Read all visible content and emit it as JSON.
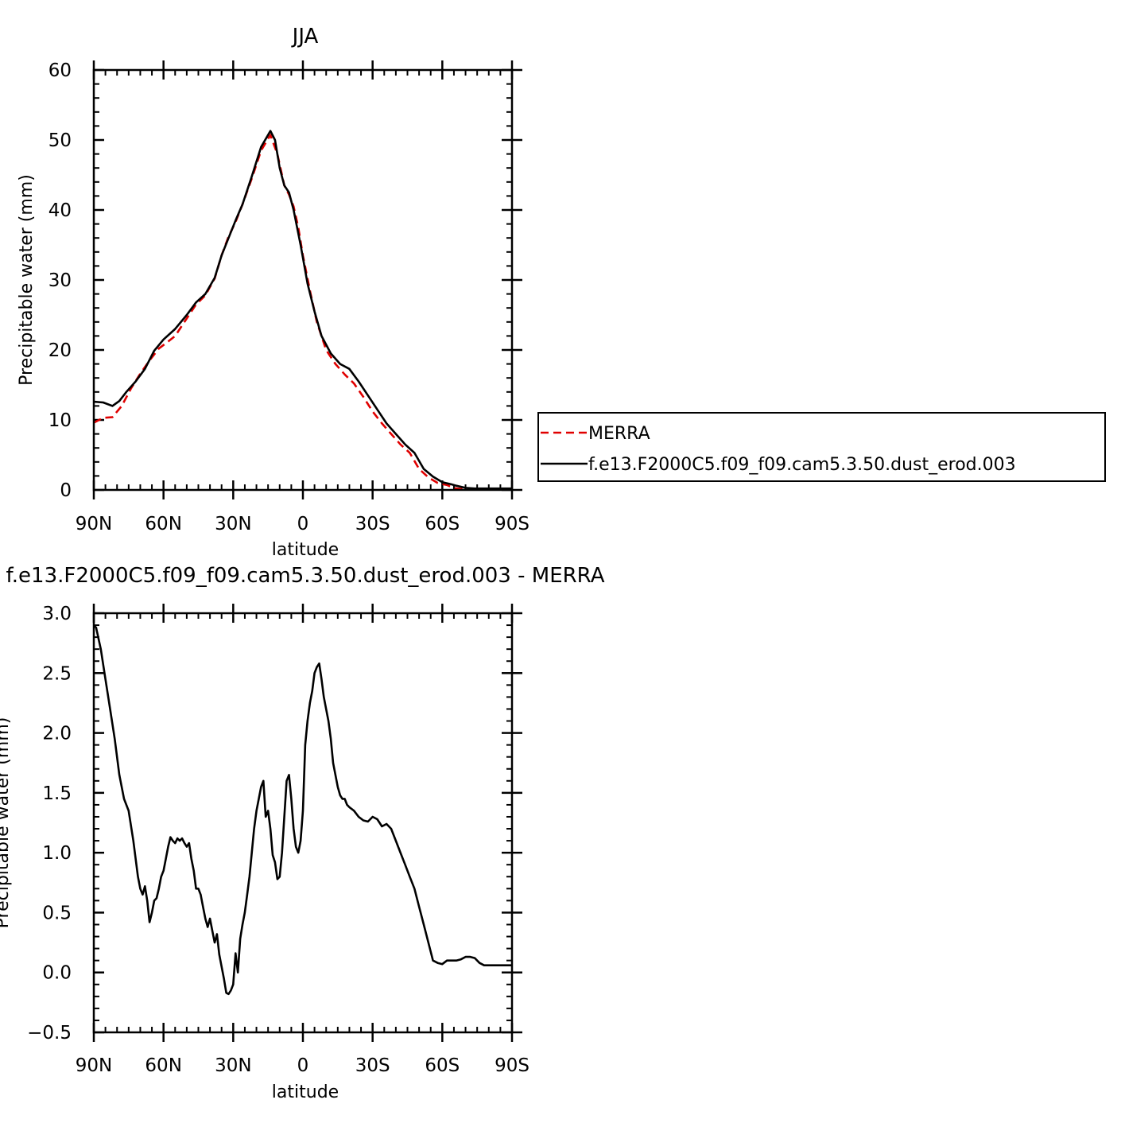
{
  "chart_data": [
    {
      "type": "line",
      "title": "JJA",
      "xlabel": "latitude",
      "ylabel": "Precipitable water (mm)",
      "xlim": [
        90,
        -90
      ],
      "ylim": [
        0,
        60
      ],
      "xticks": [
        90,
        60,
        30,
        0,
        -30,
        -60,
        -90
      ],
      "xtick_labels": [
        "90N",
        "60N",
        "30N",
        "0",
        "30S",
        "60S",
        "90S"
      ],
      "yticks": [
        0,
        10,
        20,
        30,
        40,
        50,
        60
      ],
      "ytick_labels": [
        "0",
        "10",
        "20",
        "30",
        "40",
        "50",
        "60"
      ],
      "legend_position": "right",
      "series": [
        {
          "name": "MERRA",
          "color": "#e00000",
          "dash": "dashed",
          "x": [
            90,
            86,
            82,
            78,
            74,
            70,
            66,
            62,
            58,
            55,
            50,
            46,
            42,
            38,
            35,
            32,
            29,
            26,
            22,
            18,
            14,
            11,
            8,
            6,
            4,
            2,
            0,
            -3,
            -6,
            -10,
            -14,
            -18,
            -22,
            -26,
            -30,
            -34,
            -38,
            -42,
            -46,
            -50,
            -54,
            -58,
            -62,
            -64,
            -66,
            -70,
            -74,
            -78,
            -82,
            -86,
            -90
          ],
          "y": [
            9.6,
            10.3,
            10.4,
            12.0,
            14.5,
            16.6,
            18.5,
            20.2,
            21.2,
            22.0,
            24.5,
            26.5,
            27.8,
            30.2,
            33.5,
            36.2,
            38.3,
            40.8,
            44.5,
            48.5,
            50.7,
            48.0,
            43.5,
            42.2,
            40.5,
            37.5,
            33.5,
            28.5,
            24.0,
            20.0,
            18.0,
            16.5,
            15.2,
            13.3,
            11.2,
            9.5,
            8.0,
            6.5,
            5.3,
            3.0,
            1.8,
            1.0,
            0.7,
            0.4,
            0.2,
            0.1,
            0.1,
            0.1,
            0.1,
            0.1,
            0.1
          ]
        },
        {
          "name": "f.e13.F2000C5.f09_f09.cam5.3.50.dust_erod.003",
          "color": "#000000",
          "dash": "solid",
          "x": [
            90,
            86,
            82,
            79,
            76,
            72,
            68,
            64,
            60,
            55,
            50,
            46,
            42,
            38,
            35,
            32,
            29,
            26,
            22,
            18,
            14,
            12,
            10,
            8,
            6,
            4,
            1,
            -2,
            -5,
            -8,
            -12,
            -16,
            -20,
            -24,
            -28,
            -32,
            -36,
            -40,
            -44,
            -48,
            -52,
            -56,
            -60,
            -64,
            -66,
            -70,
            -74,
            -78,
            -82,
            -86,
            -90
          ],
          "y": [
            12.6,
            12.5,
            12.0,
            12.7,
            14.0,
            15.5,
            17.3,
            19.9,
            21.5,
            23.0,
            25.0,
            26.8,
            28.0,
            30.3,
            33.5,
            36.0,
            38.5,
            40.8,
            44.8,
            49.0,
            51.3,
            50.0,
            46.0,
            43.5,
            42.5,
            40.0,
            35.0,
            29.5,
            25.5,
            22.0,
            19.5,
            18.0,
            17.3,
            15.5,
            13.5,
            11.5,
            9.5,
            8.0,
            6.5,
            5.3,
            3.0,
            1.9,
            1.1,
            0.8,
            0.6,
            0.3,
            0.2,
            0.2,
            0.2,
            0.2,
            0.2
          ]
        }
      ]
    },
    {
      "type": "line",
      "title": "f.e13.F2000C5.f09_f09.cam5.3.50.dust_erod.003 - MERRA",
      "xlabel": "latitude",
      "ylabel": "Precipitable water (mm)",
      "xlim": [
        90,
        -90
      ],
      "ylim": [
        -0.5,
        3.0
      ],
      "xticks": [
        90,
        60,
        30,
        0,
        -30,
        -60,
        -90
      ],
      "xtick_labels": [
        "90N",
        "60N",
        "30N",
        "0",
        "30S",
        "60S",
        "90S"
      ],
      "yticks": [
        -0.5,
        0.0,
        0.5,
        1.0,
        1.5,
        2.0,
        2.5,
        3.0
      ],
      "ytick_labels": [
        "−0.5",
        "0.0",
        "0.5",
        "1.0",
        "1.5",
        "2.0",
        "2.5",
        "3.0"
      ],
      "series": [
        {
          "color": "#000000",
          "dash": "solid",
          "x": [
            90,
            89,
            87,
            85,
            83,
            81,
            79,
            77,
            75,
            73,
            71,
            70,
            69,
            68,
            67,
            66,
            65,
            64,
            63,
            62,
            61,
            60,
            59,
            58,
            57,
            56,
            55,
            54,
            53,
            52,
            51,
            50,
            49,
            48,
            47,
            46,
            45,
            44,
            43,
            42,
            41,
            40,
            39,
            38,
            37,
            36,
            35,
            34,
            33,
            32,
            31,
            30,
            29,
            28,
            27,
            26,
            25,
            24,
            23,
            22,
            21,
            20,
            19,
            18,
            17,
            16,
            15,
            14,
            13,
            12,
            11,
            10,
            9,
            8,
            7,
            6,
            5,
            4,
            3,
            2,
            1,
            0,
            -1,
            -2,
            -3,
            -4,
            -5,
            -6,
            -7,
            -8,
            -9,
            -10,
            -11,
            -12,
            -13,
            -14,
            -15,
            -16,
            -17,
            -18,
            -19,
            -20,
            -22,
            -24,
            -26,
            -28,
            -30,
            -32,
            -34,
            -36,
            -38,
            -40,
            -42,
            -44,
            -46,
            -48,
            -50,
            -52,
            -54,
            -56,
            -58,
            -60,
            -62,
            -64,
            -65,
            -66,
            -68,
            -70,
            -72,
            -74,
            -76,
            -78,
            -80,
            -82,
            -84,
            -86,
            -88,
            -90
          ],
          "y": [
            2.9,
            2.88,
            2.7,
            2.45,
            2.2,
            1.95,
            1.65,
            1.45,
            1.35,
            1.1,
            0.8,
            0.7,
            0.65,
            0.72,
            0.6,
            0.42,
            0.5,
            0.6,
            0.62,
            0.7,
            0.8,
            0.85,
            0.95,
            1.05,
            1.13,
            1.1,
            1.08,
            1.12,
            1.1,
            1.12,
            1.08,
            1.05,
            1.08,
            0.95,
            0.85,
            0.7,
            0.7,
            0.65,
            0.55,
            0.45,
            0.38,
            0.45,
            0.35,
            0.25,
            0.32,
            0.15,
            0.05,
            -0.05,
            -0.17,
            -0.18,
            -0.15,
            -0.1,
            0.16,
            0.0,
            0.28,
            0.4,
            0.5,
            0.65,
            0.8,
            1.0,
            1.2,
            1.35,
            1.45,
            1.55,
            1.6,
            1.3,
            1.35,
            1.2,
            0.98,
            0.92,
            0.78,
            0.8,
            1.0,
            1.3,
            1.6,
            1.65,
            1.45,
            1.2,
            1.05,
            1.0,
            1.1,
            1.35,
            1.9,
            2.1,
            2.25,
            2.35,
            2.5,
            2.55,
            2.58,
            2.45,
            2.3,
            2.2,
            2.1,
            1.95,
            1.75,
            1.65,
            1.55,
            1.48,
            1.45,
            1.45,
            1.4,
            1.38,
            1.35,
            1.3,
            1.27,
            1.26,
            1.3,
            1.28,
            1.22,
            1.24,
            1.2,
            1.1,
            1.0,
            0.9,
            0.8,
            0.7,
            0.55,
            0.4,
            0.25,
            0.1,
            0.08,
            0.07,
            0.1,
            0.1,
            0.1,
            0.1,
            0.11,
            0.13,
            0.13,
            0.12,
            0.08,
            0.06,
            0.06,
            0.06,
            0.06,
            0.06,
            0.06,
            0.06
          ]
        }
      ]
    }
  ]
}
